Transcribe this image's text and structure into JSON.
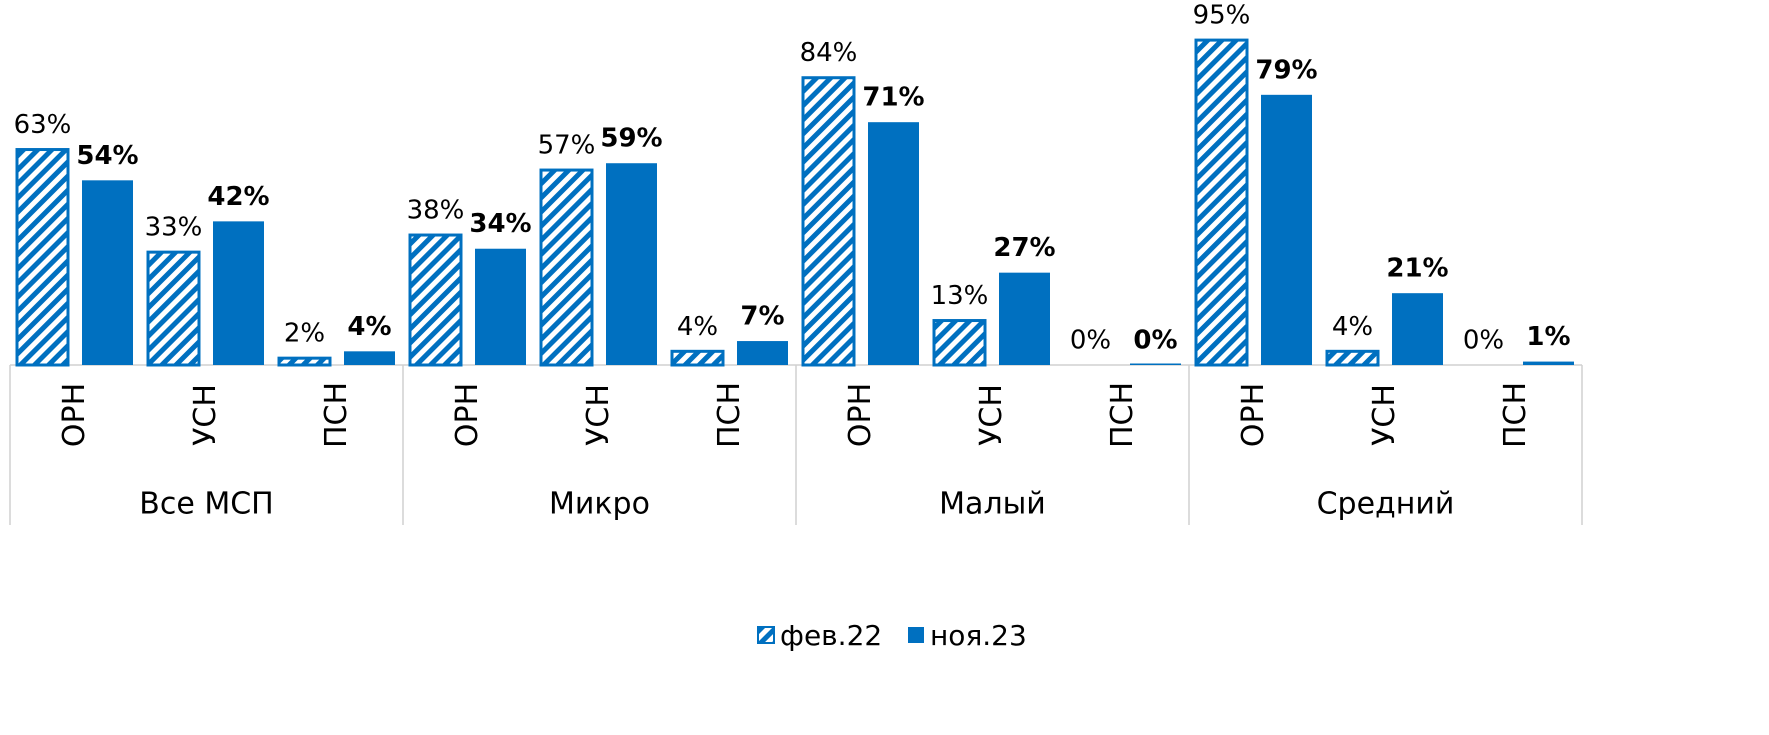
{
  "chart_data": {
    "type": "bar",
    "groups": [
      "Все МСП",
      "Микро",
      "Малый",
      "Средний"
    ],
    "categories": [
      "ОРН",
      "УСН",
      "ПСН",
      "ОРН",
      "УСН",
      "ПСН",
      "ОРН",
      "УСН",
      "ПСН",
      "ОРН",
      "УСН",
      "ПСН"
    ],
    "series": [
      {
        "name": "фев.22",
        "color": "#0070c0",
        "pattern": "hatch",
        "values": [
          63,
          33,
          2,
          38,
          57,
          4,
          84,
          13,
          0,
          95,
          4,
          0
        ],
        "value_labels": [
          "63%",
          "33%",
          "2%",
          "38%",
          "57%",
          "4%",
          "84%",
          "13%",
          "0%",
          "95%",
          "4%",
          "0%"
        ]
      },
      {
        "name": "ноя.23",
        "color": "#0070c0",
        "pattern": "solid",
        "values": [
          54,
          42,
          4,
          34,
          59,
          7,
          71,
          27,
          0,
          79,
          21,
          1
        ],
        "value_labels": [
          "54%",
          "42%",
          "4%",
          "34%",
          "59%",
          "7%",
          "71%",
          "27%",
          "0%",
          "79%",
          "21%",
          "1%"
        ]
      }
    ],
    "legend": "bottom"
  }
}
